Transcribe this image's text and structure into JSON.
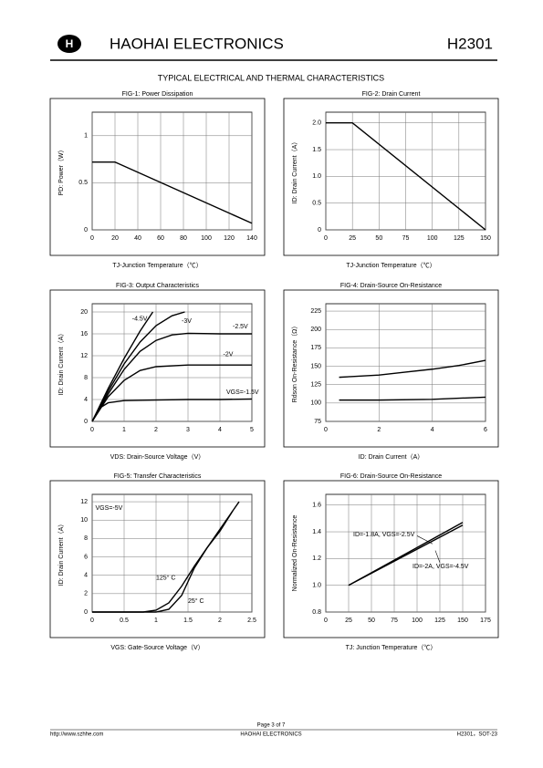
{
  "header": {
    "brand": "HAOHAI ELECTRONICS",
    "part": "H2301",
    "subtitle": "TYPICAL ELECTRICAL AND THERMAL CHARACTERISTICS"
  },
  "footer": {
    "page": "Page 3 of 7",
    "url": "http://www.szhhe.com",
    "company": "HAOHAI ELECTRONICS",
    "part": "H2301，SOT-23"
  },
  "chart_data": [
    {
      "type": "line",
      "title": "FIG-1: Power Dissipation",
      "ylabel": "PD: Power（W）",
      "xlabel": "TJ-Junction Temperature（℃）",
      "xlim": [
        0,
        140
      ],
      "xticks": [
        0,
        20,
        40,
        60,
        80,
        100,
        120,
        140
      ],
      "ylim": [
        0,
        1.25
      ],
      "yticks": [
        0,
        0.5,
        1
      ],
      "grid": true,
      "series": [
        {
          "color": "#000000",
          "x": [
            0,
            20,
            140
          ],
          "values": [
            0.72,
            0.72,
            0.07
          ]
        }
      ]
    },
    {
      "type": "line",
      "title": "FIG-2: Drain Current",
      "ylabel": "ID: Drain Current（A）",
      "xlabel": "TJ-Junction Temperature（℃）",
      "xlim": [
        0,
        150
      ],
      "xticks": [
        0,
        25,
        50,
        75,
        100,
        125,
        150
      ],
      "ylim": [
        0,
        2.2
      ],
      "yticks": [
        0,
        0.5,
        {
          "value": 1,
          "label": "1.0"
        },
        1.5,
        {
          "value": 2,
          "label": "2.0"
        }
      ],
      "grid": true,
      "series": [
        {
          "color": "#000000",
          "x": [
            0,
            25,
            150
          ],
          "values": [
            2,
            2,
            0
          ]
        }
      ]
    },
    {
      "type": "line",
      "title": "FIG-3: Output Characteristics",
      "ylabel": "ID: Drain Current（A）",
      "xlabel": "VDS: Drain-Source Voltage（V）",
      "xlim": [
        0,
        5
      ],
      "xticks": [
        0,
        1,
        2,
        3,
        4,
        5
      ],
      "ylim": [
        0,
        21.5
      ],
      "yticks": [
        0,
        4,
        8,
        12,
        16,
        20
      ],
      "grid": true,
      "series": [
        {
          "name": "-4.5V",
          "color": "#000000",
          "x": [
            0,
            0.5,
            1,
            1.5,
            1.9
          ],
          "values": [
            0,
            6,
            11.5,
            16.5,
            20
          ]
        },
        {
          "name": "-3V",
          "color": "#000000",
          "x": [
            0,
            0.5,
            1,
            1.5,
            2,
            2.5,
            2.9
          ],
          "values": [
            0,
            5.5,
            10.5,
            14.5,
            17.5,
            19.3,
            20
          ]
        },
        {
          "name": "-2.5V",
          "color": "#000000",
          "x": [
            0,
            0.5,
            1,
            1.5,
            2,
            2.5,
            3,
            4,
            5
          ],
          "values": [
            0,
            5,
            9.5,
            12.8,
            14.8,
            15.8,
            16.1,
            16,
            16
          ]
        },
        {
          "name": "-2V",
          "color": "#000000",
          "x": [
            0,
            0.5,
            1,
            1.5,
            2,
            3,
            4,
            5
          ],
          "values": [
            0,
            4.5,
            7.5,
            9.3,
            10,
            10.3,
            10.3,
            10.3
          ]
        },
        {
          "name": "VGS=-1.5V",
          "color": "#000000",
          "x": [
            0,
            0.25,
            0.5,
            1,
            2,
            3,
            4,
            5
          ],
          "values": [
            0,
            2.5,
            3.4,
            3.8,
            3.9,
            4,
            4,
            4.1
          ]
        }
      ]
    },
    {
      "type": "line",
      "title": "FIG-4: Drain-Source On-Resistance",
      "ylabel": "Rdson On-Resistance（Ω）",
      "xlabel": "ID: Drain Current（A）",
      "xlim": [
        0,
        6
      ],
      "xticks": [
        0,
        2,
        4,
        6
      ],
      "ylim": [
        75,
        235
      ],
      "yticks": [
        75,
        100,
        125,
        150,
        175,
        200,
        225
      ],
      "grid": true,
      "series": [
        {
          "color": "#000000",
          "x": [
            0.5,
            1,
            2,
            3,
            4,
            5,
            6
          ],
          "values": [
            135,
            136,
            138,
            142,
            146,
            151,
            158
          ]
        },
        {
          "color": "#000000",
          "x": [
            0.5,
            2,
            4,
            6
          ],
          "values": [
            104,
            104,
            105,
            108
          ]
        }
      ]
    },
    {
      "type": "line",
      "title": "FIG-5: Transfer Characteristics",
      "ylabel": "ID: Drain Current（A）",
      "xlabel": "VGS: Gate-Source Voltage（V）",
      "xlim": [
        0,
        2.5
      ],
      "xticks": [
        0,
        0.5,
        1,
        1.5,
        2,
        2.5
      ],
      "ylim": [
        0,
        12.8
      ],
      "yticks": [
        0,
        2,
        4,
        6,
        8,
        10,
        12
      ],
      "grid": true,
      "annotations": [
        "VGS=-5V"
      ],
      "series": [
        {
          "name": "125° C",
          "color": "#000000",
          "x": [
            0,
            0.8,
            1,
            1.2,
            1.4,
            1.6,
            1.8,
            2,
            2.2
          ],
          "values": [
            0,
            0,
            0.2,
            1,
            2.8,
            5,
            7,
            8.8,
            11
          ]
        },
        {
          "name": "25° C",
          "color": "#000000",
          "x": [
            0,
            1,
            1.2,
            1.4,
            1.6,
            1.8,
            2,
            2.2,
            2.3
          ],
          "values": [
            0,
            0,
            0.3,
            1.8,
            4.8,
            7,
            9,
            11,
            12
          ]
        }
      ]
    },
    {
      "type": "line",
      "title": "FIG-6: Drain-Source On-Resistance",
      "ylabel": "Normalized On-Resistance",
      "xlabel": "TJ: Junction Temperature（℃）",
      "xlim": [
        0,
        175
      ],
      "xticks": [
        0,
        25,
        50,
        75,
        100,
        125,
        150,
        175
      ],
      "ylim": [
        0.8,
        1.68
      ],
      "yticks": [
        0.8,
        {
          "value": 1,
          "label": "1.0"
        },
        1.2,
        1.4,
        1.6
      ],
      "grid": true,
      "series": [
        {
          "name": "ID=-1.8A, VGS=-2.5V",
          "color": "#000000",
          "x": [
            25,
            150
          ],
          "values": [
            1,
            1.47
          ]
        },
        {
          "name": "ID=-2A, VGS=-4.5V",
          "color": "#000000",
          "x": [
            25,
            150
          ],
          "values": [
            1,
            1.45
          ]
        }
      ]
    }
  ]
}
